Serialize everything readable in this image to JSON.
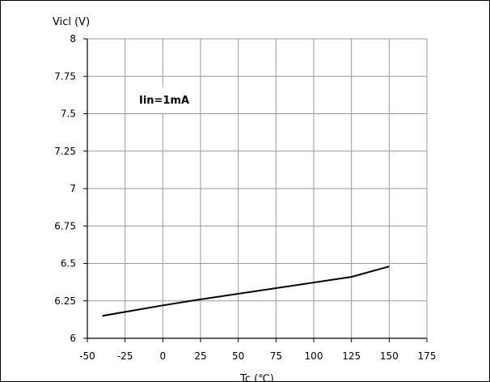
{
  "chart_data": {
    "type": "line",
    "ylabel": "Vicl (V)",
    "xlabel": "Tc (℃)",
    "annotation": "Iin=1mA",
    "xlim": [
      -50,
      175
    ],
    "ylim": [
      6,
      8
    ],
    "x_ticks": [
      -50,
      -25,
      0,
      25,
      50,
      75,
      100,
      125,
      150,
      175
    ],
    "y_ticks": [
      6,
      6.25,
      6.5,
      6.75,
      7,
      7.25,
      7.5,
      7.75,
      8
    ],
    "grid": true,
    "series": [
      {
        "x": [
          -40,
          0,
          25,
          125,
          150
        ],
        "y": [
          6.15,
          6.22,
          6.26,
          6.41,
          6.48
        ],
        "color": "#000000"
      }
    ]
  }
}
